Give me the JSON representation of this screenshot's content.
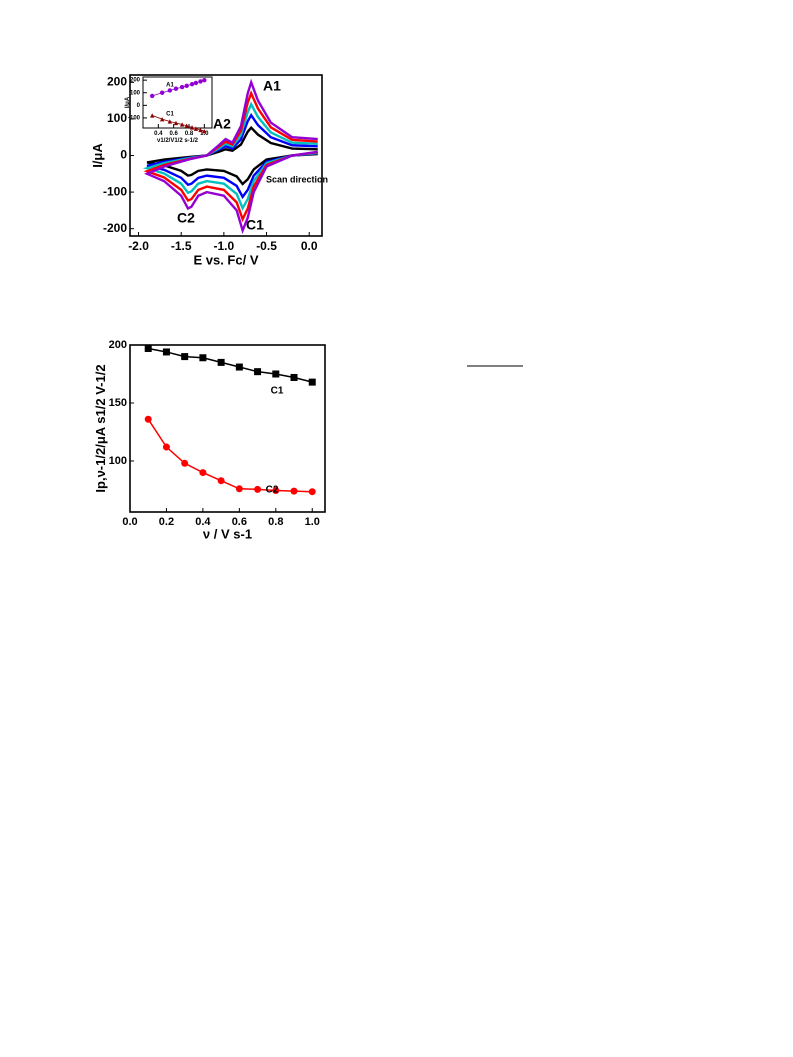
{
  "chart_data": [
    {
      "type": "line",
      "xlabel": "E vs. Fc/ V",
      "ylabel": "I/μA",
      "xlim": [
        -2.1,
        0.15
      ],
      "ylim": [
        -220,
        220
      ],
      "xticks": [
        {
          "value": -2,
          "label": "-2.0"
        },
        {
          "value": -1.5,
          "label": "-1.5"
        },
        {
          "value": -1,
          "label": "-1.0"
        },
        {
          "value": -0.5,
          "label": "-0.5"
        },
        {
          "value": 0,
          "label": "0.0"
        }
      ],
      "yticks": [
        -200,
        -100,
        0,
        100,
        200
      ],
      "x": [
        0.1,
        -0.2,
        -0.5,
        -0.65,
        -0.72,
        -0.78,
        -0.85,
        -1.0,
        -1.2,
        -1.3,
        -1.38,
        -1.42,
        -1.5,
        -1.7,
        -1.9,
        -1.7,
        -1.4,
        -1.2,
        -1.05,
        -0.98,
        -0.9,
        -0.8,
        -0.72,
        -0.68,
        -0.6,
        -0.45,
        -0.2,
        0.1
      ],
      "series": [
        {
          "color": "#000000",
          "values": [
            4,
            0,
            -11,
            -38,
            -65,
            -78,
            -57,
            -42,
            -38,
            -42,
            -53,
            -55,
            -42,
            -27,
            -19,
            -11,
            -4,
            0,
            11,
            17,
            13,
            30,
            65,
            76,
            57,
            34,
            19,
            17
          ]
        },
        {
          "color": "#0000ff",
          "values": [
            6,
            0,
            -17,
            -55,
            -94,
            -113,
            -83,
            -61,
            -55,
            -61,
            -77,
            -80,
            -61,
            -39,
            -28,
            -17,
            -6,
            0,
            17,
            25,
            19,
            44,
            94,
            110,
            83,
            50,
            28,
            25
          ]
        },
        {
          "color": "#00c0c0",
          "values": [
            7,
            0,
            -21,
            -70,
            -119,
            -144,
            -105,
            -77,
            -70,
            -77,
            -98,
            -102,
            -77,
            -49,
            -35,
            -21,
            -7,
            0,
            21,
            32,
            25,
            56,
            119,
            140,
            105,
            63,
            35,
            32
          ]
        },
        {
          "color": "#ff0000",
          "values": [
            9,
            0,
            -26,
            -85,
            -145,
            -174,
            -128,
            -94,
            -85,
            -94,
            -119,
            -123,
            -94,
            -60,
            -43,
            -26,
            -9,
            0,
            26,
            38,
            30,
            68,
            145,
            170,
            128,
            77,
            43,
            38
          ]
        },
        {
          "color": "#9400d3",
          "values": [
            10,
            0,
            -30,
            -100,
            -170,
            -205,
            -150,
            -110,
            -100,
            -110,
            -140,
            -145,
            -110,
            -70,
            -50,
            -30,
            -10,
            0,
            30,
            45,
            35,
            80,
            170,
            200,
            150,
            90,
            50,
            45
          ]
        }
      ],
      "annotations": [
        "A1",
        "A2",
        "C1",
        "C2",
        "Scan direction"
      ]
    },
    {
      "type": "scatter",
      "xlabel": "ν1/2/V1/2 s-1/2",
      "ylabel": "I/μA",
      "xlim": [
        0.2,
        1.1
      ],
      "ylim": [
        -180,
        225
      ],
      "xticks": [
        0.4,
        0.6,
        0.8,
        {
          "value": 1,
          "label": "1.0"
        }
      ],
      "yticks": [
        -100,
        0,
        100,
        200
      ],
      "x": [
        0.32,
        0.45,
        0.55,
        0.63,
        0.71,
        0.77,
        0.84,
        0.89,
        0.95,
        1.0
      ],
      "series": [
        {
          "name": "A1",
          "color": "#9400d3",
          "marker": "circle",
          "values": [
            75,
            100,
            118,
            132,
            145,
            155,
            168,
            178,
            190,
            200
          ]
        },
        {
          "name": "C1",
          "color": "#8b0000",
          "marker": "triangle",
          "values": [
            -80,
            -110,
            -128,
            -140,
            -152,
            -162,
            -175,
            -185,
            -195,
            -205
          ]
        }
      ]
    },
    {
      "type": "scatter",
      "xlabel": "ν / V s-1",
      "ylabel": "Ip,ν-1/2/μA s1/2 V-1/2",
      "xlim": [
        0,
        1.07
      ],
      "ylim": [
        56,
        200
      ],
      "xticks": [
        {
          "value": 0,
          "label": "0.0"
        },
        0.2,
        0.4,
        0.6,
        0.8,
        {
          "value": 1,
          "label": "1.0"
        }
      ],
      "yticks": [
        100,
        150,
        200
      ],
      "x": [
        0.1,
        0.2,
        0.3,
        0.4,
        0.5,
        0.6,
        0.7,
        0.8,
        0.9,
        1.0
      ],
      "series": [
        {
          "name": "C1",
          "color": "#000000",
          "marker": "square",
          "values": [
            197,
            194,
            190,
            189,
            185,
            181,
            177,
            175,
            172,
            168
          ]
        },
        {
          "name": "C2",
          "color": "#ff0000",
          "marker": "circle",
          "values": [
            136,
            112,
            98,
            90,
            83,
            76,
            75.5,
            74.5,
            74,
            73.5
          ]
        }
      ]
    }
  ]
}
